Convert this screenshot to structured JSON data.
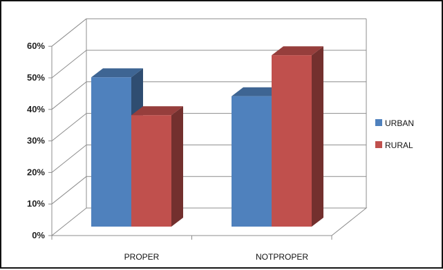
{
  "chart_data": {
    "type": "bar",
    "categories": [
      "PROPER",
      "NOTPROPER"
    ],
    "series": [
      {
        "name": "URBAN",
        "values": [
          53,
          47
        ],
        "color": "#4F81BD"
      },
      {
        "name": "RURAL",
        "values": [
          41,
          60
        ],
        "color": "#C0504D"
      }
    ],
    "ylim": [
      0,
      60
    ],
    "yticks": [
      "0%",
      "10%",
      "20%",
      "30%",
      "40%",
      "50%",
      "60%"
    ],
    "ytick_values": [
      0,
      10,
      20,
      30,
      40,
      50,
      60
    ],
    "grid": true,
    "legend_position": "right",
    "style": "3d-column"
  }
}
